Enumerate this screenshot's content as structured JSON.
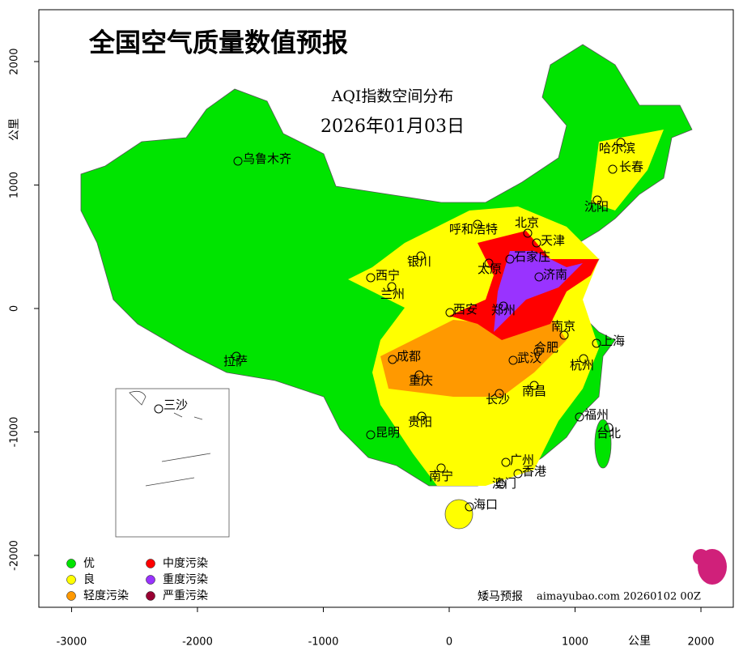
{
  "map_data": {
    "title": "全国空气质量数值预报",
    "subtitle": "AQI指数空间分布",
    "date": "2026年01月03日",
    "xlim": [
      -3260,
      2257
    ],
    "ylim": [
      -2420,
      2420
    ],
    "xticks": [
      -3000,
      -2000,
      -1000,
      0,
      1000,
      2000
    ],
    "yticks": [
      -2000,
      -1000,
      0,
      1000,
      2000
    ],
    "x_unit": "公里",
    "y_unit": "公里",
    "cities": [
      "乌鲁木齐",
      "哈尔滨",
      "长春",
      "沈阳",
      "呼和浩特",
      "北京",
      "天津",
      "石家庄",
      "太原",
      "济南",
      "银川",
      "西宁",
      "兰州",
      "西安",
      "郑州",
      "南京",
      "上海",
      "合肥",
      "武汉",
      "杭州",
      "成都",
      "重庆",
      "拉萨",
      "长沙",
      "南昌",
      "贵阳",
      "福州",
      "台北",
      "昆明",
      "广州",
      "南宁",
      "香港",
      "澳门",
      "海口",
      "三沙"
    ],
    "legend": [
      {
        "name": "优",
        "color": "#00e400"
      },
      {
        "name": "良",
        "color": "#ffff00"
      },
      {
        "name": "轻度污染",
        "color": "#ff9900"
      },
      {
        "name": "中度污染",
        "color": "#ff0000"
      },
      {
        "name": "重度污染",
        "color": "#9933ff"
      },
      {
        "name": "严重污染",
        "color": "#990033"
      }
    ],
    "footer_brand": "矮马预报",
    "footer_site": "aimayubao.com 20260102 00Z"
  }
}
